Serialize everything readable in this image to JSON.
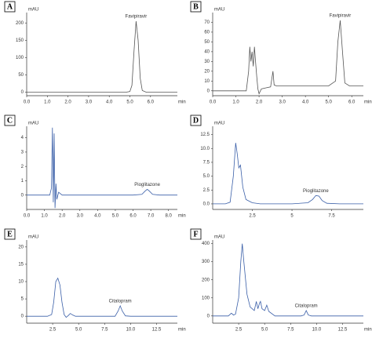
{
  "chart_data": [
    {
      "type": "line",
      "label": "A",
      "ylabel": "mAU",
      "xlabel": "min",
      "color": "#555555",
      "x": [
        0,
        0.5,
        1,
        2,
        3,
        4,
        4.8,
        5.0,
        5.1,
        5.2,
        5.3,
        5.4,
        5.5,
        5.6,
        5.8,
        6.5,
        7.3
      ],
      "values": [
        0,
        0,
        0,
        0,
        0,
        0,
        0,
        2,
        20,
        120,
        205,
        150,
        40,
        5,
        0,
        0,
        0
      ],
      "xlim": [
        0,
        7.3
      ],
      "ylim": [
        -10,
        230
      ],
      "xticks": [
        {
          "value": 0,
          "label": "0.0"
        },
        {
          "value": 1,
          "label": "1.0"
        },
        {
          "value": 2,
          "label": "2.0"
        },
        {
          "value": 3,
          "label": "3.0"
        },
        {
          "value": 4,
          "label": "4.0"
        },
        {
          "value": 5,
          "label": "5.0"
        },
        {
          "value": 6,
          "label": "6.0"
        }
      ],
      "yticks": [
        0,
        50,
        100,
        150,
        200
      ],
      "annotations": [
        {
          "text": "Favipiravir",
          "x": 5.3,
          "y": 205
        }
      ]
    },
    {
      "type": "line",
      "label": "B",
      "ylabel": "mAU",
      "xlabel": "min",
      "color": "#555555",
      "x": [
        0,
        0.5,
        1.2,
        1.45,
        1.55,
        1.6,
        1.65,
        1.7,
        1.75,
        1.8,
        1.85,
        1.9,
        1.95,
        2.0,
        2.1,
        2.3,
        2.5,
        2.6,
        2.65,
        2.75,
        3,
        4,
        5,
        5.3,
        5.4,
        5.5,
        5.6,
        5.7,
        5.9,
        6.5
      ],
      "values": [
        0,
        0,
        0,
        0,
        20,
        45,
        30,
        40,
        25,
        45,
        30,
        15,
        2,
        -3,
        2,
        3,
        4,
        20,
        6,
        5,
        5,
        5,
        5,
        10,
        50,
        72,
        40,
        8,
        5,
        5
      ],
      "xlim": [
        0,
        6.5
      ],
      "ylim": [
        -5,
        80
      ],
      "xticks": [
        {
          "value": 0,
          "label": "0.0"
        },
        {
          "value": 1,
          "label": "1.0"
        },
        {
          "value": 2,
          "label": "2.0"
        },
        {
          "value": 3,
          "label": "3.0"
        },
        {
          "value": 4,
          "label": "4.0"
        },
        {
          "value": 5,
          "label": "5.0"
        },
        {
          "value": 6,
          "label": "6.0"
        }
      ],
      "yticks": [
        0,
        10,
        20,
        30,
        40,
        50,
        60,
        70
      ],
      "annotations": [
        {
          "text": "Favipiravir",
          "x": 5.5,
          "y": 72
        }
      ]
    },
    {
      "type": "line",
      "label": "C",
      "ylabel": "mAU",
      "xlabel": "min",
      "color": "#3a5fa8",
      "x": [
        0,
        0.5,
        1.0,
        1.3,
        1.4,
        1.45,
        1.5,
        1.55,
        1.6,
        1.65,
        1.7,
        1.8,
        2.0,
        2.5,
        3,
        4,
        5,
        6,
        6.5,
        6.7,
        6.8,
        6.9,
        7.1,
        7.5,
        8.5
      ],
      "values": [
        0,
        0,
        0,
        0,
        0.5,
        4.7,
        -0.5,
        4.3,
        -0.9,
        0.8,
        -0.3,
        0.2,
        0,
        0,
        0,
        0,
        0,
        0,
        0.05,
        0.3,
        0.4,
        0.3,
        0.05,
        0,
        0
      ],
      "xlim": [
        0,
        8.5
      ],
      "ylim": [
        -1,
        4.8
      ],
      "xticks": [
        {
          "value": 0,
          "label": "0.0"
        },
        {
          "value": 1,
          "label": "1.0"
        },
        {
          "value": 2,
          "label": "2.0"
        },
        {
          "value": 3,
          "label": "3.0"
        },
        {
          "value": 4,
          "label": "4.0"
        },
        {
          "value": 5,
          "label": "5.0"
        },
        {
          "value": 6,
          "label": "6.0"
        },
        {
          "value": 7,
          "label": "7.0"
        },
        {
          "value": 8,
          "label": "8.0"
        }
      ],
      "yticks": [
        0,
        1,
        2,
        3,
        4
      ],
      "annotations": [
        {
          "text": "Pioglitazone",
          "x": 6.8,
          "y": 0.4
        }
      ]
    },
    {
      "type": "line",
      "label": "D",
      "ylabel": "mAU",
      "color": "#3a5fa8",
      "x": [
        0,
        0.8,
        1.1,
        1.3,
        1.45,
        1.55,
        1.65,
        1.75,
        1.9,
        2.1,
        2.5,
        3,
        4,
        5,
        6,
        6.3,
        6.5,
        6.7,
        6.9,
        7.2,
        8,
        9.5
      ],
      "values": [
        0,
        0,
        0.3,
        5,
        11,
        9,
        6.5,
        7,
        3,
        0.8,
        0.2,
        0,
        0,
        0,
        0.2,
        0.8,
        1.5,
        1.4,
        0.6,
        0.1,
        0,
        0
      ],
      "xlim": [
        0,
        9.5
      ],
      "ylim": [
        -1,
        14
      ],
      "xticks": [
        2.5,
        5,
        7.5
      ],
      "yticks": [
        {
          "value": 0,
          "label": "0.0"
        },
        2.5,
        {
          "value": 5,
          "label": "5.0"
        },
        7.5,
        {
          "value": 10,
          "label": "10.0"
        },
        12.5
      ],
      "annotations": [
        {
          "text": "Pioglitazone",
          "x": 6.5,
          "y": 1.5
        }
      ]
    },
    {
      "type": "line",
      "label": "E",
      "ylabel": "mAU",
      "xlabel": "min",
      "color": "#3a5fa8",
      "x": [
        0,
        1,
        2,
        2.4,
        2.6,
        2.8,
        3.0,
        3.2,
        3.4,
        3.6,
        3.8,
        4.0,
        4.2,
        4.4,
        4.7,
        5,
        7,
        8.5,
        8.8,
        9.0,
        9.2,
        9.5,
        10,
        12,
        14.5
      ],
      "values": [
        0,
        0,
        0,
        0.5,
        4,
        10,
        11,
        9,
        4,
        0.5,
        -0.3,
        0.2,
        0.8,
        0.4,
        0,
        0,
        0,
        0,
        1.5,
        3,
        1.5,
        0.1,
        0,
        0,
        0
      ],
      "xlim": [
        0,
        14.5
      ],
      "ylim": [
        -2,
        22
      ],
      "xticks": [
        2.5,
        {
          "value": 5,
          "label": "5.0"
        },
        7.5,
        {
          "value": 10,
          "label": "10.0"
        },
        12.5
      ],
      "yticks": [
        0,
        5,
        10,
        15,
        20
      ],
      "annotations": [
        {
          "text": "Citalopram",
          "x": 9.0,
          "y": 3
        }
      ]
    },
    {
      "type": "line",
      "label": "F",
      "ylabel": "mAU",
      "xlabel": "min",
      "color": "#3a5fa8",
      "x": [
        0,
        1,
        1.5,
        1.8,
        2,
        2.2,
        2.5,
        2.7,
        2.85,
        3,
        3.3,
        3.6,
        4,
        4.2,
        4.35,
        4.5,
        4.6,
        4.75,
        5,
        5.2,
        5.4,
        6,
        8.5,
        8.8,
        9,
        9.2,
        9.5,
        10,
        12,
        14.5
      ],
      "values": [
        0,
        0,
        0,
        15,
        5,
        10,
        100,
        300,
        400,
        300,
        120,
        50,
        30,
        80,
        40,
        70,
        80,
        40,
        30,
        60,
        25,
        0,
        0,
        5,
        30,
        5,
        0,
        0,
        0,
        0
      ],
      "xlim": [
        0,
        14.5
      ],
      "ylim": [
        -40,
        420
      ],
      "xticks": [
        2.5,
        {
          "value": 5,
          "label": "5.0"
        },
        7.5,
        {
          "value": 10,
          "label": "10.0"
        },
        12.5
      ],
      "yticks": [
        0,
        100,
        200,
        300,
        400
      ],
      "annotations": [
        {
          "text": "Citalopram",
          "x": 9.0,
          "y": 30
        }
      ]
    }
  ]
}
